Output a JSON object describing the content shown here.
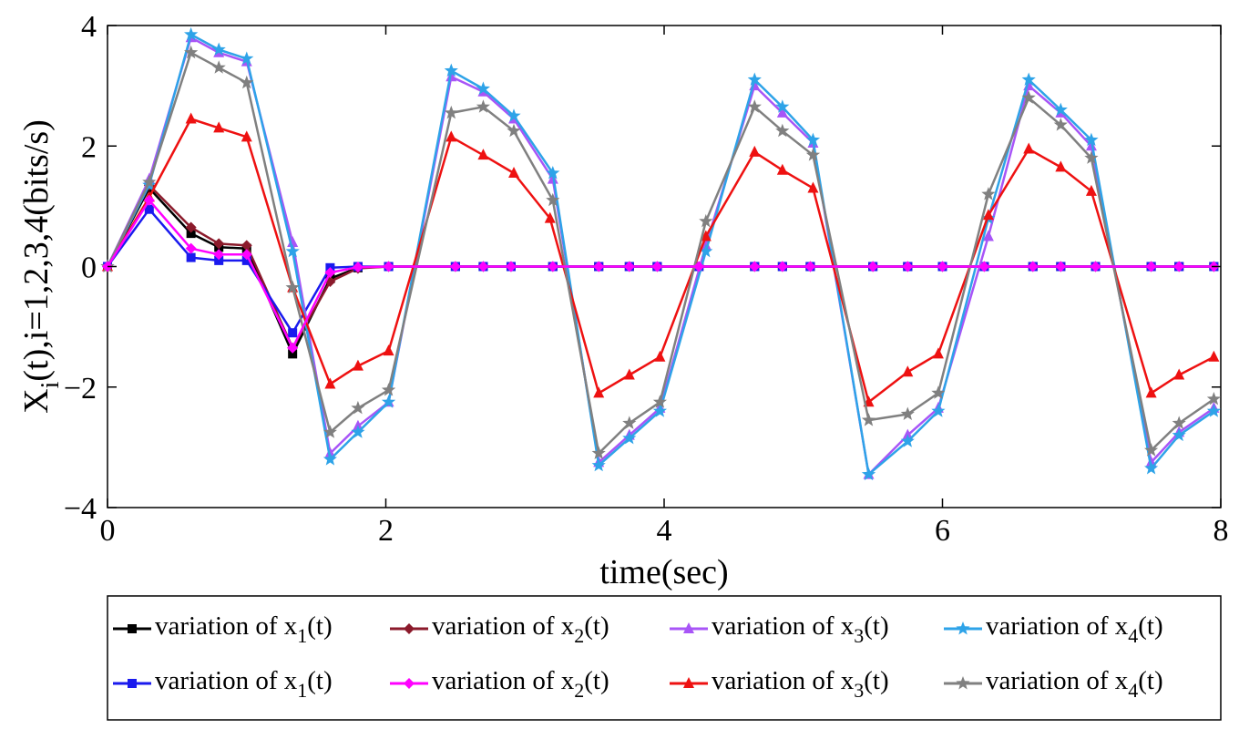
{
  "chart_data": {
    "type": "line",
    "title": "",
    "xlabel": "time(sec)",
    "ylabel": "X_i(t),i=1,2,3,4(bits/s)",
    "ylabel_parts": {
      "main": "X",
      "sub": "i",
      "rest": "(t),i=1,2,3,4(bits/s)"
    },
    "xlim": [
      0,
      8
    ],
    "ylim": [
      -4,
      4
    ],
    "xticks": [
      0,
      2,
      4,
      6,
      8
    ],
    "yticks": [
      -4,
      -2,
      0,
      2,
      4
    ],
    "xtick_labels": [
      "0",
      "2",
      "4",
      "6",
      "8"
    ],
    "ytick_labels": [
      "−4",
      "−2",
      "0",
      "2",
      "4"
    ],
    "grid": false,
    "legend_position": "bottom",
    "series": [
      {
        "name": "variation of x1(t)",
        "label_prefix": "variation of x",
        "label_sub": "1",
        "label_suffix": "(t)",
        "color": "#000000",
        "marker": "square",
        "x": [
          0,
          0.3,
          0.6,
          0.8,
          1.0,
          1.33,
          1.6,
          1.8,
          2.02,
          2.5,
          2.7,
          2.9,
          3.2,
          3.53,
          3.75,
          3.95,
          4.25,
          4.65,
          4.85,
          5.05,
          5.5,
          5.75,
          6.0,
          6.3,
          6.65,
          6.85,
          7.1,
          7.5,
          7.7,
          7.95
        ],
        "y": [
          0,
          1.3,
          0.55,
          0.32,
          0.3,
          -1.45,
          -0.2,
          -0.02,
          0,
          0,
          0,
          0,
          0,
          0,
          0,
          0,
          0,
          0,
          0,
          0,
          0,
          0,
          0,
          0,
          0,
          0,
          0,
          0,
          0,
          0
        ]
      },
      {
        "name": "variation of x2(t)",
        "label_prefix": "variation of x",
        "label_sub": "2",
        "label_suffix": "(t)",
        "color": "#8b1a2b",
        "marker": "diamond",
        "x": [
          0,
          0.3,
          0.6,
          0.8,
          1.0,
          1.33,
          1.6,
          1.8,
          2.02,
          2.5,
          2.7,
          2.9,
          3.2,
          3.53,
          3.75,
          3.95,
          4.25,
          4.65,
          4.85,
          5.05,
          5.5,
          5.75,
          6.0,
          6.3,
          6.65,
          6.85,
          7.1,
          7.5,
          7.7,
          7.95
        ],
        "y": [
          0,
          1.35,
          0.65,
          0.38,
          0.35,
          -1.35,
          -0.25,
          -0.03,
          0,
          0,
          0,
          0,
          0,
          0,
          0,
          0,
          0,
          0,
          0,
          0,
          0,
          0,
          0,
          0,
          0,
          0,
          0,
          0,
          0,
          0
        ]
      },
      {
        "name": "variation of x3(t)",
        "label_prefix": "variation of x",
        "label_sub": "3",
        "label_suffix": "(t)",
        "color": "#a855f7",
        "marker": "triangle",
        "x": [
          0,
          0.3,
          0.6,
          0.8,
          1.0,
          1.33,
          1.6,
          1.8,
          2.02,
          2.47,
          2.7,
          2.92,
          3.2,
          3.53,
          3.75,
          3.97,
          4.3,
          4.65,
          4.85,
          5.07,
          5.47,
          5.75,
          5.97,
          6.33,
          6.62,
          6.85,
          7.07,
          7.5,
          7.7,
          7.95
        ],
        "y": [
          0,
          1.45,
          3.8,
          3.55,
          3.4,
          0.4,
          -3.1,
          -2.65,
          -2.25,
          3.15,
          2.9,
          2.45,
          1.45,
          -3.25,
          -2.8,
          -2.35,
          0.35,
          3.0,
          2.55,
          2.05,
          -3.45,
          -2.8,
          -2.35,
          0.5,
          3.0,
          2.55,
          2.0,
          -3.25,
          -2.75,
          -2.35
        ]
      },
      {
        "name": "variation of x4(t)",
        "label_prefix": "variation of x",
        "label_sub": "4",
        "label_suffix": "(t)",
        "color": "#2ea3e8",
        "marker": "star",
        "x": [
          0,
          0.3,
          0.6,
          0.8,
          1.0,
          1.33,
          1.6,
          1.8,
          2.02,
          2.47,
          2.7,
          2.92,
          3.2,
          3.53,
          3.75,
          3.97,
          4.3,
          4.65,
          4.85,
          5.07,
          5.47,
          5.75,
          5.97,
          6.33,
          6.62,
          6.85,
          7.07,
          7.5,
          7.7,
          7.95
        ],
        "y": [
          0,
          1.35,
          3.85,
          3.6,
          3.45,
          0.25,
          -3.2,
          -2.75,
          -2.25,
          3.25,
          2.95,
          2.5,
          1.55,
          -3.3,
          -2.85,
          -2.4,
          0.25,
          3.1,
          2.65,
          2.1,
          -3.45,
          -2.9,
          -2.4,
          0.8,
          3.1,
          2.6,
          2.1,
          -3.35,
          -2.8,
          -2.4
        ]
      },
      {
        "name": "variation of x1(t)",
        "label_prefix": "variation of x",
        "label_sub": "1",
        "label_suffix": "(t)",
        "color": "#1a1aee",
        "marker": "square",
        "x": [
          0,
          0.3,
          0.6,
          0.8,
          1.0,
          1.33,
          1.6,
          1.8,
          2.02,
          2.5,
          2.7,
          2.9,
          3.2,
          3.53,
          3.75,
          3.95,
          4.25,
          4.65,
          4.85,
          5.05,
          5.5,
          5.75,
          6.0,
          6.3,
          6.65,
          6.85,
          7.1,
          7.5,
          7.7,
          7.95
        ],
        "y": [
          0,
          0.95,
          0.15,
          0.1,
          0.1,
          -1.1,
          -0.02,
          0,
          0,
          0,
          0,
          0,
          0,
          0,
          0,
          0,
          0,
          0,
          0,
          0,
          0,
          0,
          0,
          0,
          0,
          0,
          0,
          0,
          0,
          0
        ]
      },
      {
        "name": "variation of x2(t)",
        "label_prefix": "variation of x",
        "label_sub": "2",
        "label_suffix": "(t)",
        "color": "#ff00ff",
        "marker": "diamond",
        "x": [
          0,
          0.3,
          0.6,
          0.8,
          1.0,
          1.33,
          1.6,
          1.8,
          2.02,
          2.5,
          2.7,
          2.9,
          3.2,
          3.53,
          3.75,
          3.95,
          4.25,
          4.65,
          4.85,
          5.05,
          5.5,
          5.75,
          6.0,
          6.3,
          6.65,
          6.85,
          7.1,
          7.5,
          7.7,
          7.95
        ],
        "y": [
          0,
          1.1,
          0.3,
          0.2,
          0.2,
          -1.35,
          -0.1,
          -0.01,
          0,
          0,
          0,
          0,
          0,
          0,
          0,
          0,
          0,
          0,
          0,
          0,
          0,
          0,
          0,
          0,
          0,
          0,
          0,
          0,
          0,
          0
        ]
      },
      {
        "name": "variation of x3(t)",
        "label_prefix": "variation of x",
        "label_sub": "3",
        "label_suffix": "(t)",
        "color": "#ee1111",
        "marker": "triangle",
        "x": [
          0,
          0.3,
          0.6,
          0.8,
          1.0,
          1.33,
          1.6,
          1.8,
          2.02,
          2.47,
          2.7,
          2.92,
          3.18,
          3.53,
          3.75,
          3.97,
          4.3,
          4.65,
          4.85,
          5.07,
          5.47,
          5.75,
          5.97,
          6.33,
          6.62,
          6.85,
          7.07,
          7.5,
          7.7,
          7.95
        ],
        "y": [
          0,
          1.15,
          2.45,
          2.3,
          2.15,
          -0.35,
          -1.95,
          -1.65,
          -1.4,
          2.15,
          1.85,
          1.55,
          0.8,
          -2.1,
          -1.8,
          -1.5,
          0.5,
          1.9,
          1.6,
          1.3,
          -2.25,
          -1.75,
          -1.45,
          0.85,
          1.95,
          1.65,
          1.25,
          -2.1,
          -1.8,
          -1.5
        ]
      },
      {
        "name": "variation of x4(t)",
        "label_prefix": "variation of x",
        "label_sub": "4",
        "label_suffix": "(t)",
        "color": "#808080",
        "marker": "star",
        "x": [
          0,
          0.3,
          0.6,
          0.8,
          1.0,
          1.33,
          1.6,
          1.8,
          2.02,
          2.47,
          2.7,
          2.92,
          3.2,
          3.53,
          3.75,
          3.97,
          4.3,
          4.65,
          4.85,
          5.07,
          5.47,
          5.75,
          5.97,
          6.33,
          6.62,
          6.85,
          7.07,
          7.5,
          7.7,
          7.95
        ],
        "y": [
          0,
          1.4,
          3.55,
          3.3,
          3.05,
          -0.35,
          -2.75,
          -2.35,
          -2.05,
          2.55,
          2.65,
          2.25,
          1.1,
          -3.1,
          -2.6,
          -2.25,
          0.75,
          2.65,
          2.25,
          1.85,
          -2.55,
          -2.45,
          -2.1,
          1.2,
          2.8,
          2.35,
          1.8,
          -3.05,
          -2.6,
          -2.2
        ]
      }
    ]
  }
}
